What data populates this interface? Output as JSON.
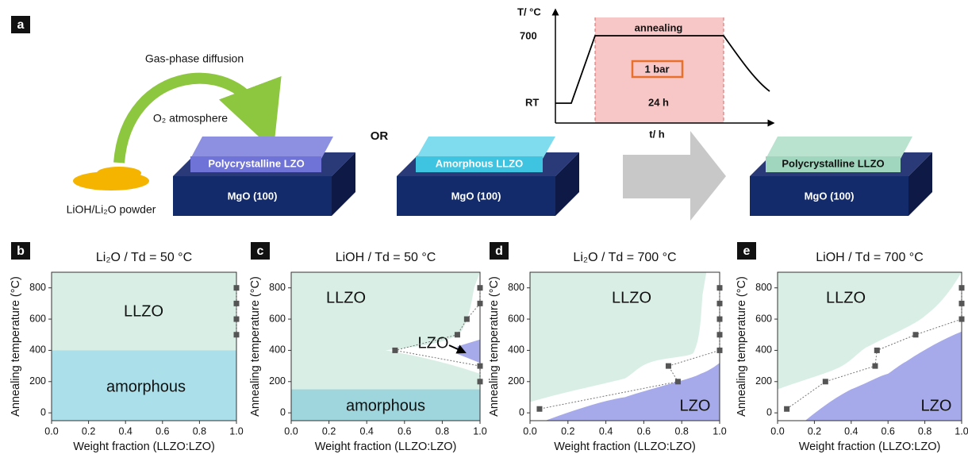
{
  "panel_a": {
    "label": "a",
    "gas_phase": "Gas-phase diffusion",
    "atmosphere": "O₂ atmosphere",
    "powder": "LiOH/Li₂O powder",
    "film_1": "Polycrystalline LZO",
    "film_2": "Amorphous LLZO",
    "film_3": "Polycrystalline LLZO",
    "substrate": [
      "MgO (100)",
      "MgO (100)",
      "MgO (100)"
    ],
    "or": "OR",
    "inset": {
      "y_axis": "T/ °C",
      "x_axis": "t/ h",
      "high": "700",
      "low": "RT",
      "stage": "annealing",
      "pressure": "1 bar",
      "duration": "24 h"
    }
  },
  "chart_data": [
    {
      "type": "scatter",
      "panel": "b",
      "title": "Li₂O / Td = 50 °C",
      "x_label": "Weight fraction (LLZO:LZO)",
      "y_label": "Annealing temperature (°C)",
      "xlim": [
        0,
        1
      ],
      "ylim": [
        -50,
        900
      ],
      "xticks": [
        {
          "value": 0,
          "label": "0.0"
        },
        0.2,
        0.4,
        0.6,
        0.8,
        {
          "value": 1,
          "label": "1.0"
        }
      ],
      "yticks": [
        0,
        200,
        400,
        600,
        800
      ],
      "regions": [
        "LLZO",
        "amorphous"
      ],
      "series": [
        {
          "color": "#555555",
          "x": [
            1,
            1,
            1,
            1
          ],
          "values": [
            800,
            700,
            600,
            500
          ]
        }
      ]
    },
    {
      "type": "scatter",
      "panel": "c",
      "title": "LiOH / Td = 50 °C",
      "x_label": "Weight fraction (LLZO:LZO)",
      "y_label": "Annealing temperature (°C)",
      "xlim": [
        0,
        1
      ],
      "ylim": [
        -50,
        900
      ],
      "xticks": [
        {
          "value": 0,
          "label": "0.0"
        },
        0.2,
        0.4,
        0.6,
        0.8,
        {
          "value": 1,
          "label": "1.0"
        }
      ],
      "yticks": [
        0,
        200,
        400,
        600,
        800
      ],
      "regions": [
        "LLZO",
        "amorphous",
        "LZO"
      ],
      "series": [
        {
          "color": "#555555",
          "x": [
            1,
            1,
            0.93,
            0.88,
            0.55,
            1,
            1
          ],
          "values": [
            800,
            700,
            600,
            500,
            400,
            300,
            200
          ]
        }
      ]
    },
    {
      "type": "scatter",
      "panel": "d",
      "title": "Li₂O / Td = 700 °C",
      "x_label": "Weight fraction (LLZO:LZO)",
      "y_label": "Annealing temperature (°C)",
      "xlim": [
        0,
        1
      ],
      "ylim": [
        -50,
        900
      ],
      "xticks": [
        {
          "value": 0,
          "label": "0.0"
        },
        0.2,
        0.4,
        0.6,
        0.8,
        {
          "value": 1,
          "label": "1.0"
        }
      ],
      "yticks": [
        0,
        200,
        400,
        600,
        800
      ],
      "regions": [
        "LLZO",
        "LZO"
      ],
      "series": [
        {
          "color": "#555555",
          "x": [
            1,
            1,
            1,
            1,
            1,
            0.73,
            0.78,
            0.05
          ],
          "values": [
            800,
            700,
            600,
            500,
            400,
            300,
            200,
            25
          ]
        }
      ]
    },
    {
      "type": "scatter",
      "panel": "e",
      "title": "LiOH / Td = 700 °C",
      "x_label": "Weight fraction (LLZO:LZO)",
      "y_label": "Annealing temperature (°C)",
      "xlim": [
        0,
        1
      ],
      "ylim": [
        -50,
        900
      ],
      "xticks": [
        {
          "value": 0,
          "label": "0.0"
        },
        0.2,
        0.4,
        0.6,
        0.8,
        {
          "value": 1,
          "label": "1.0"
        }
      ],
      "yticks": [
        0,
        200,
        400,
        600,
        800
      ],
      "regions": [
        "LLZO",
        "LZO"
      ],
      "series": [
        {
          "color": "#555555",
          "x": [
            1,
            1,
            1,
            0.75,
            0.54,
            0.53,
            0.26,
            0.05
          ],
          "values": [
            800,
            700,
            600,
            500,
            400,
            300,
            200,
            25
          ]
        }
      ]
    }
  ]
}
